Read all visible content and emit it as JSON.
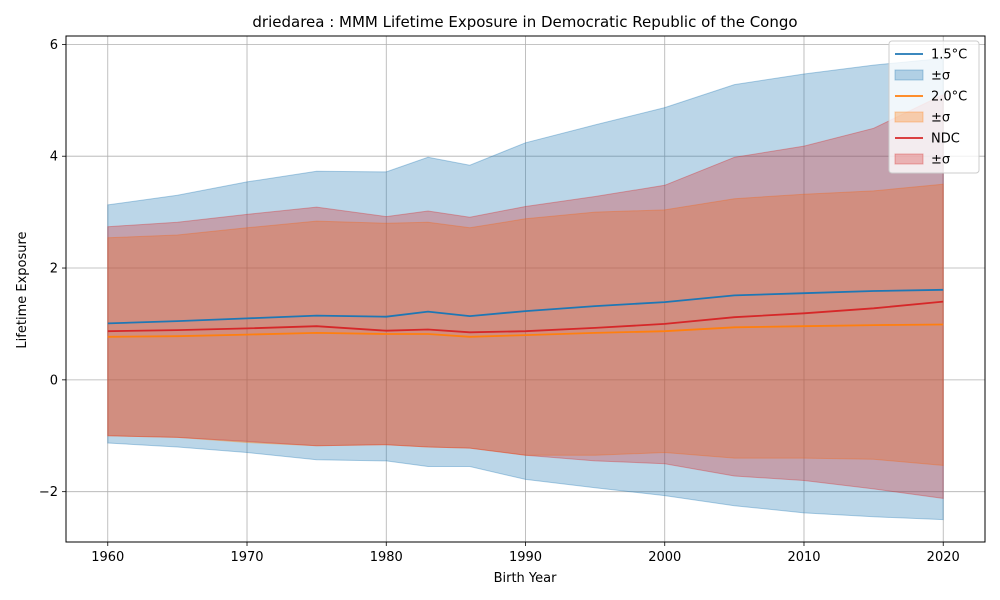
{
  "chart_data": {
    "type": "line",
    "title": "driedarea : MMM Lifetime Exposure in Democratic Republic of the Congo",
    "xlabel": "Birth Year",
    "ylabel": "Lifetime Exposure",
    "xlim": [
      1957,
      2023
    ],
    "ylim": [
      -2.9,
      6.15
    ],
    "xticks": [
      1960,
      1970,
      1980,
      1990,
      2000,
      2010,
      2020
    ],
    "yticks": [
      -2,
      0,
      2,
      4,
      6
    ],
    "grid": true,
    "legend_position": "top-right",
    "x": [
      1960,
      1965,
      1970,
      1975,
      1980,
      1983,
      1986,
      1990,
      1995,
      2000,
      2005,
      2010,
      2015,
      2020
    ],
    "series": [
      {
        "name": "1.5°C",
        "band_label": "±σ",
        "color": "#1f77b4",
        "band_color": "#1f77b4",
        "values": [
          1.01,
          1.05,
          1.1,
          1.15,
          1.13,
          1.22,
          1.14,
          1.23,
          1.32,
          1.39,
          1.51,
          1.55,
          1.59,
          1.61
        ],
        "lower": [
          -1.13,
          -1.2,
          -1.3,
          -1.43,
          -1.45,
          -1.55,
          -1.55,
          -1.78,
          -1.93,
          -2.07,
          -2.25,
          -2.38,
          -2.45,
          -2.5
        ],
        "upper": [
          3.13,
          3.3,
          3.54,
          3.73,
          3.72,
          3.98,
          3.84,
          4.24,
          4.56,
          4.87,
          5.28,
          5.47,
          5.63,
          5.75
        ]
      },
      {
        "name": "2.0°C",
        "band_label": "±σ",
        "color": "#ff7f0e",
        "band_color": "#ff7f0e",
        "values": [
          0.77,
          0.78,
          0.81,
          0.84,
          0.82,
          0.82,
          0.77,
          0.8,
          0.84,
          0.87,
          0.94,
          0.96,
          0.98,
          0.99
        ],
        "lower": [
          -1.0,
          -1.03,
          -1.12,
          -1.18,
          -1.16,
          -1.2,
          -1.22,
          -1.35,
          -1.35,
          -1.3,
          -1.4,
          -1.4,
          -1.42,
          -1.53
        ],
        "upper": [
          2.54,
          2.59,
          2.72,
          2.84,
          2.8,
          2.82,
          2.72,
          2.88,
          3.0,
          3.04,
          3.24,
          3.32,
          3.38,
          3.5
        ]
      },
      {
        "name": "NDC",
        "band_label": "±σ",
        "color": "#d62728",
        "band_color": "#d62728",
        "values": [
          0.87,
          0.89,
          0.92,
          0.96,
          0.88,
          0.9,
          0.85,
          0.87,
          0.93,
          1.0,
          1.12,
          1.19,
          1.28,
          1.4
        ],
        "lower": [
          -1.0,
          -1.03,
          -1.1,
          -1.18,
          -1.16,
          -1.2,
          -1.22,
          -1.35,
          -1.45,
          -1.5,
          -1.72,
          -1.8,
          -1.95,
          -2.12
        ],
        "upper": [
          2.74,
          2.82,
          2.96,
          3.09,
          2.92,
          3.02,
          2.91,
          3.1,
          3.28,
          3.48,
          3.98,
          4.18,
          4.5,
          5.1
        ]
      }
    ]
  }
}
